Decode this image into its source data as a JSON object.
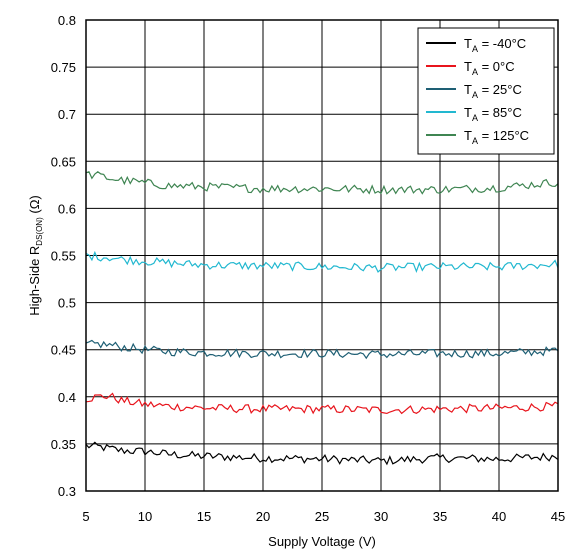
{
  "chart_data": {
    "type": "line",
    "xlabel": "Supply Voltage (V)",
    "ylabel": {
      "prefix": "High-Side R",
      "subscript": "DS(ON)",
      "suffix": " (Ω)"
    },
    "xlim": [
      5,
      45
    ],
    "ylim": [
      0.3,
      0.8
    ],
    "x_ticks": [
      "5",
      "10",
      "15",
      "20",
      "25",
      "30",
      "35",
      "40",
      "45"
    ],
    "y_ticks": [
      "0.3",
      "0.35",
      "0.4",
      "0.45",
      "0.5",
      "0.55",
      "0.6",
      "0.65",
      "0.7",
      "0.75",
      "0.8"
    ],
    "grid": true,
    "legend_position": "top-right",
    "x": [
      5,
      6,
      7,
      8,
      10,
      12,
      15,
      20,
      25,
      30,
      35,
      40,
      45
    ],
    "series": [
      {
        "name": "-40°C",
        "legend_main": "T",
        "legend_sub": "A",
        "legend_rest": " = -40°C",
        "color": "#000000",
        "values": [
          0.348,
          0.347,
          0.345,
          0.343,
          0.342,
          0.339,
          0.337,
          0.335,
          0.334,
          0.332,
          0.335,
          0.334,
          0.337
        ]
      },
      {
        "name": "0°C",
        "legend_main": "T",
        "legend_sub": "A",
        "legend_rest": " = 0°C",
        "color": "#e8141c",
        "values": [
          0.398,
          0.4,
          0.401,
          0.396,
          0.392,
          0.39,
          0.388,
          0.387,
          0.387,
          0.386,
          0.387,
          0.388,
          0.39
        ]
      },
      {
        "name": "25°C",
        "legend_main": "T",
        "legend_sub": "A",
        "legend_rest": " = 25°C",
        "color": "#1e5f74",
        "values": [
          0.455,
          0.456,
          0.455,
          0.453,
          0.45,
          0.448,
          0.447,
          0.446,
          0.446,
          0.445,
          0.446,
          0.446,
          0.449
        ]
      },
      {
        "name": "85°C",
        "legend_main": "T",
        "legend_sub": "A",
        "legend_rest": " = 85°C",
        "color": "#22b8d0",
        "values": [
          0.55,
          0.549,
          0.548,
          0.546,
          0.544,
          0.542,
          0.54,
          0.539,
          0.538,
          0.537,
          0.538,
          0.538,
          0.541
        ]
      },
      {
        "name": "125°C",
        "legend_main": "T",
        "legend_sub": "A",
        "legend_rest": " = 125°C",
        "color": "#3f8552",
        "values": [
          0.636,
          0.635,
          0.632,
          0.63,
          0.627,
          0.624,
          0.623,
          0.621,
          0.621,
          0.62,
          0.62,
          0.622,
          0.628
        ]
      }
    ]
  }
}
